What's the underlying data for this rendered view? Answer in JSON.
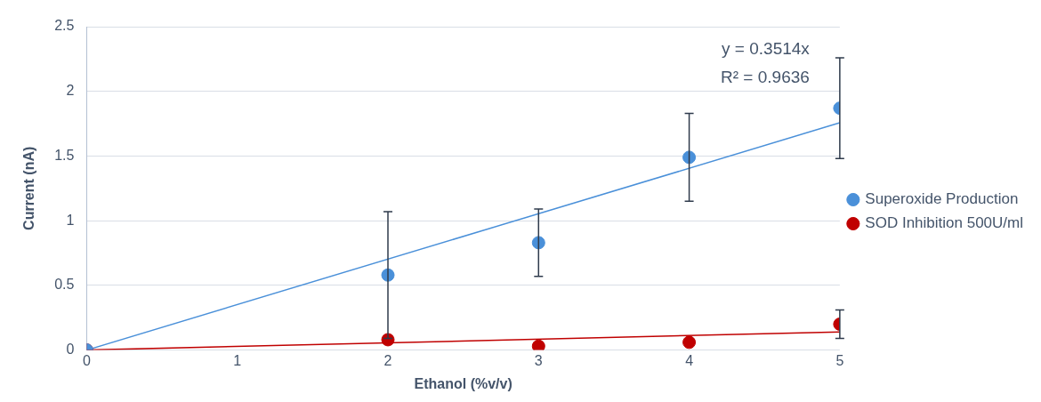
{
  "chart_data": {
    "type": "scatter",
    "xlabel": "Ethanol (%v/v)",
    "ylabel": "Current (nA)",
    "xlim": [
      0,
      5
    ],
    "xticks": [
      0,
      1,
      2,
      3,
      4,
      5
    ],
    "ylim": [
      0,
      2.5
    ],
    "yticks": [
      0,
      0.5,
      1,
      1.5,
      2,
      2.5
    ],
    "grid": "y",
    "legend": "right",
    "marker": "circle",
    "annotations": [
      "y = 0.3514x",
      "R² = 0.9636"
    ],
    "series": [
      {
        "name": "Superoxide Production",
        "color": "#4a90d9",
        "x": [
          0,
          2,
          3,
          4,
          5
        ],
        "values": [
          0,
          0.58,
          0.83,
          1.49,
          1.87
        ],
        "errors": [
          null,
          0.49,
          0.26,
          0.34,
          0.39
        ]
      },
      {
        "name": "SOD Inhibition 500U/ml",
        "color": "#c00000",
        "x": [
          0,
          2,
          3,
          4,
          5
        ],
        "values": [
          0,
          0.08,
          0.03,
          0.06,
          0.2
        ],
        "errors": [
          null,
          null,
          null,
          null,
          0.11
        ]
      },
      {
        "type": "line",
        "marker": "none",
        "color": "#4a90d9",
        "x": [
          0,
          5
        ],
        "values": [
          0,
          1.757
        ]
      },
      {
        "type": "line",
        "marker": "none",
        "color": "#c00000",
        "x": [
          0,
          5
        ],
        "values": [
          0,
          0.14
        ]
      }
    ]
  }
}
